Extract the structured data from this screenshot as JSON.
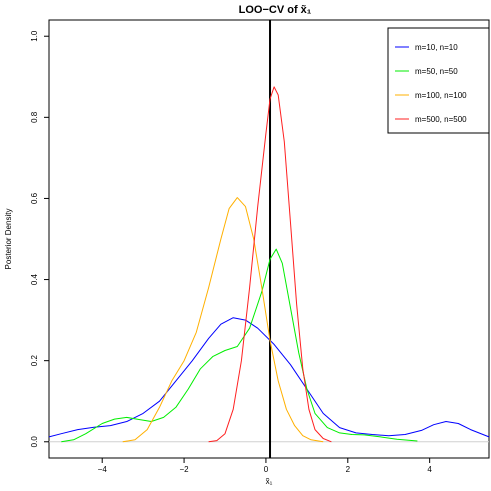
{
  "chart_data": {
    "type": "line",
    "title": "LOO−CV of  x̃₁",
    "xlabel": "x̃₁",
    "ylabel": "Posterior Density",
    "xlim": [
      -5.3,
      5.45
    ],
    "ylim": [
      -0.04,
      1.04
    ],
    "xticks": [
      -4,
      -2,
      0,
      2,
      4
    ],
    "xtick_labels": [
      "−4",
      "−2",
      "0",
      "2",
      "4"
    ],
    "yticks": [
      0.0,
      0.2,
      0.4,
      0.6,
      0.8,
      1.0
    ],
    "ytick_labels": [
      "0.0",
      "0.2",
      "0.4",
      "0.6",
      "0.8",
      "1.0"
    ],
    "vline_x": 0.1,
    "hline_y": 0.0,
    "legend_position": "top-right",
    "grid": false,
    "series": [
      {
        "name": "m=10, n=10",
        "color": "#0000ff",
        "points": [
          [
            -5.3,
            0.012
          ],
          [
            -5.0,
            0.02
          ],
          [
            -4.6,
            0.03
          ],
          [
            -4.2,
            0.036
          ],
          [
            -3.8,
            0.04
          ],
          [
            -3.4,
            0.05
          ],
          [
            -3.0,
            0.07
          ],
          [
            -2.6,
            0.1
          ],
          [
            -2.2,
            0.15
          ],
          [
            -1.8,
            0.2
          ],
          [
            -1.4,
            0.255
          ],
          [
            -1.1,
            0.29
          ],
          [
            -0.8,
            0.306
          ],
          [
            -0.5,
            0.3
          ],
          [
            -0.2,
            0.28
          ],
          [
            0.2,
            0.24
          ],
          [
            0.6,
            0.19
          ],
          [
            1.0,
            0.13
          ],
          [
            1.4,
            0.07
          ],
          [
            1.8,
            0.035
          ],
          [
            2.2,
            0.022
          ],
          [
            2.6,
            0.018
          ],
          [
            3.0,
            0.015
          ],
          [
            3.4,
            0.018
          ],
          [
            3.8,
            0.028
          ],
          [
            4.1,
            0.042
          ],
          [
            4.4,
            0.05
          ],
          [
            4.7,
            0.045
          ],
          [
            5.0,
            0.03
          ],
          [
            5.45,
            0.012
          ]
        ]
      },
      {
        "name": "m=50, n=50",
        "color": "#00ee00",
        "points": [
          [
            -5.0,
            0.0
          ],
          [
            -4.7,
            0.005
          ],
          [
            -4.4,
            0.02
          ],
          [
            -4.0,
            0.045
          ],
          [
            -3.7,
            0.056
          ],
          [
            -3.4,
            0.06
          ],
          [
            -3.1,
            0.055
          ],
          [
            -2.8,
            0.05
          ],
          [
            -2.5,
            0.06
          ],
          [
            -2.2,
            0.085
          ],
          [
            -1.9,
            0.13
          ],
          [
            -1.6,
            0.18
          ],
          [
            -1.3,
            0.21
          ],
          [
            -1.0,
            0.225
          ],
          [
            -0.7,
            0.235
          ],
          [
            -0.4,
            0.28
          ],
          [
            -0.1,
            0.37
          ],
          [
            0.1,
            0.45
          ],
          [
            0.25,
            0.475
          ],
          [
            0.4,
            0.44
          ],
          [
            0.6,
            0.33
          ],
          [
            0.8,
            0.22
          ],
          [
            1.0,
            0.13
          ],
          [
            1.2,
            0.07
          ],
          [
            1.5,
            0.035
          ],
          [
            1.8,
            0.022
          ],
          [
            2.1,
            0.018
          ],
          [
            2.4,
            0.017
          ],
          [
            2.8,
            0.012
          ],
          [
            3.2,
            0.006
          ],
          [
            3.7,
            0.002
          ]
        ]
      },
      {
        "name": "m=100, n=100",
        "color": "#ffb000",
        "points": [
          [
            -3.5,
            0.0
          ],
          [
            -3.2,
            0.005
          ],
          [
            -2.9,
            0.03
          ],
          [
            -2.6,
            0.085
          ],
          [
            -2.3,
            0.15
          ],
          [
            -2.0,
            0.2
          ],
          [
            -1.7,
            0.27
          ],
          [
            -1.4,
            0.38
          ],
          [
            -1.1,
            0.5
          ],
          [
            -0.9,
            0.575
          ],
          [
            -0.7,
            0.602
          ],
          [
            -0.5,
            0.58
          ],
          [
            -0.3,
            0.5
          ],
          [
            -0.1,
            0.38
          ],
          [
            0.1,
            0.25
          ],
          [
            0.3,
            0.15
          ],
          [
            0.5,
            0.08
          ],
          [
            0.7,
            0.04
          ],
          [
            0.9,
            0.015
          ],
          [
            1.1,
            0.005
          ],
          [
            1.4,
            0.0
          ]
        ]
      },
      {
        "name": "m=500, n=500",
        "color": "#ff2020",
        "points": [
          [
            -1.4,
            0.0
          ],
          [
            -1.2,
            0.003
          ],
          [
            -1.0,
            0.02
          ],
          [
            -0.8,
            0.08
          ],
          [
            -0.6,
            0.2
          ],
          [
            -0.4,
            0.38
          ],
          [
            -0.2,
            0.58
          ],
          [
            0.0,
            0.76
          ],
          [
            0.1,
            0.845
          ],
          [
            0.2,
            0.875
          ],
          [
            0.3,
            0.855
          ],
          [
            0.45,
            0.74
          ],
          [
            0.6,
            0.54
          ],
          [
            0.75,
            0.34
          ],
          [
            0.9,
            0.18
          ],
          [
            1.05,
            0.08
          ],
          [
            1.2,
            0.03
          ],
          [
            1.4,
            0.008
          ],
          [
            1.6,
            0.0
          ]
        ]
      }
    ]
  }
}
